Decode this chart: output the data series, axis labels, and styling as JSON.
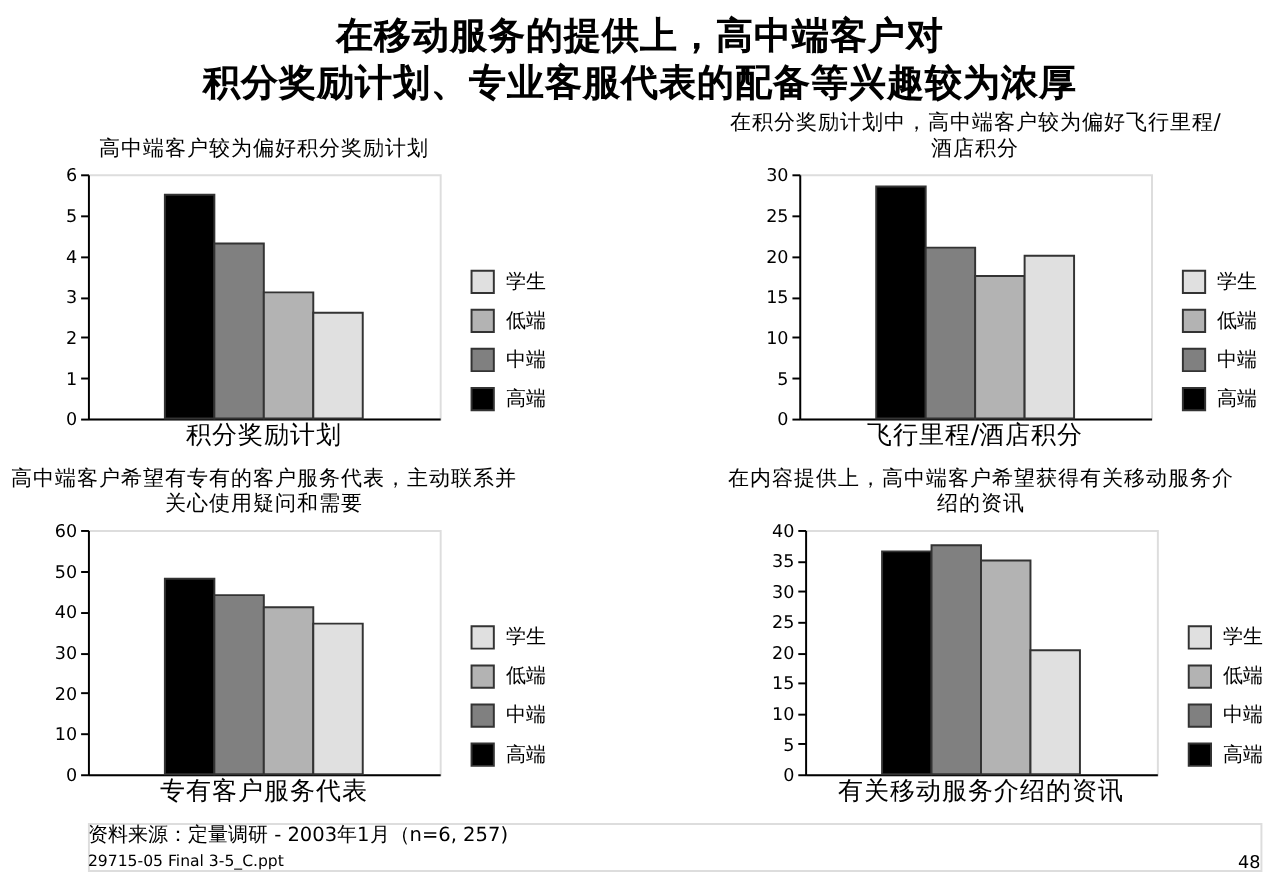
{
  "chart_data": [
    {
      "type": "bar",
      "title": "高中端客户较为偏好积分奖励计划",
      "categories": [
        "积分奖励计划"
      ],
      "series": [
        {
          "name": "高端",
          "color": "#000000",
          "values": [
            5.5
          ]
        },
        {
          "name": "中端",
          "color": "#808080",
          "values": [
            4.3
          ]
        },
        {
          "name": "低端",
          "color": "#b3b3b3",
          "values": [
            3.1
          ]
        },
        {
          "name": "学生",
          "color": "#e0e0e0",
          "values": [
            2.6
          ]
        }
      ],
      "ylim": [
        0,
        6
      ],
      "yticks": [
        0,
        1,
        2,
        3,
        4,
        5,
        6
      ],
      "legend": "right",
      "grid": false,
      "annotations": [
        "在移动服务的提供上，高中端客户对",
        "积分奖励计划、专业客服代表的配备等兴趣较为浓厚",
        "资料来源：定量调研  -  2003年1月（n=6, 257)",
        "29715-05 Final 3-5_C.ppt",
        "48"
      ]
    },
    {
      "type": "bar",
      "title": "在积分奖励计划中，高中端客户较为偏好飞行里程/酒店积分",
      "categories": [
        "飞行里程/酒店积分"
      ],
      "series": [
        {
          "name": "高端",
          "color": "#000000",
          "values": [
            28.5
          ]
        },
        {
          "name": "中端",
          "color": "#808080",
          "values": [
            21
          ]
        },
        {
          "name": "低端",
          "color": "#b3b3b3",
          "values": [
            17.5
          ]
        },
        {
          "name": "学生",
          "color": "#e0e0e0",
          "values": [
            20
          ]
        }
      ],
      "ylim": [
        0,
        30
      ],
      "yticks": [
        0,
        5,
        10,
        15,
        20,
        25,
        30
      ],
      "legend": "right",
      "grid": false
    },
    {
      "type": "bar",
      "title": "高中端客户希望有专有的客户服务代表，主动联系并关心使用疑问和需要",
      "categories": [
        "专有客户服务代表"
      ],
      "series": [
        {
          "name": "高端",
          "color": "#000000",
          "values": [
            48
          ]
        },
        {
          "name": "中端",
          "color": "#808080",
          "values": [
            44
          ]
        },
        {
          "name": "低端",
          "color": "#b3b3b3",
          "values": [
            41
          ]
        },
        {
          "name": "学生",
          "color": "#e0e0e0",
          "values": [
            37
          ]
        }
      ],
      "ylim": [
        0,
        60
      ],
      "yticks": [
        0,
        10,
        20,
        30,
        40,
        50,
        60
      ],
      "legend": "right",
      "grid": false
    },
    {
      "type": "bar",
      "title": "在内容提供上，高中端客户希望获得有关移动服务介绍的资讯",
      "categories": [
        "有关移动服务介绍的资讯"
      ],
      "series": [
        {
          "name": "高端",
          "color": "#000000",
          "values": [
            36.5
          ]
        },
        {
          "name": "中端",
          "color": "#808080",
          "values": [
            37.5
          ]
        },
        {
          "name": "低端",
          "color": "#b3b3b3",
          "values": [
            35
          ]
        },
        {
          "name": "学生",
          "color": "#e0e0e0",
          "values": [
            20.3
          ]
        }
      ],
      "ylim": [
        0,
        40
      ],
      "yticks": [
        0,
        5,
        10,
        15,
        20,
        25,
        30,
        35,
        40
      ],
      "legend": "right",
      "grid": false
    }
  ]
}
